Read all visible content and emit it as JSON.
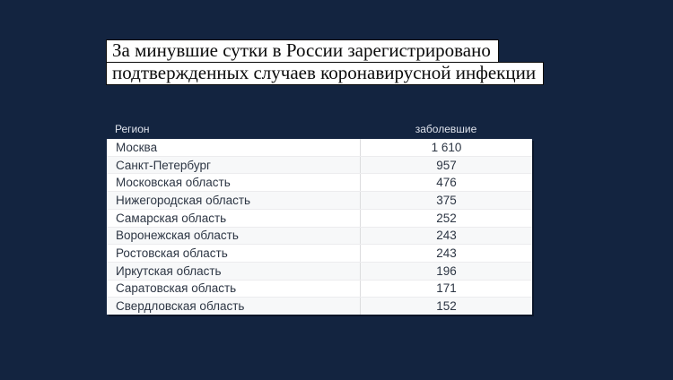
{
  "colors": {
    "background": "#132440",
    "highlight": "#ffffff",
    "title_text": "#0b0b0b",
    "table_text": "#2d3644",
    "header_text": "#dfe3ec",
    "row_alt": "#f7f8f9",
    "divider": "#dcdcde"
  },
  "title": {
    "line1": "За минувшие сутки в России зарегистрировано",
    "line2": "подтвержденных случаев коронавирусной инфекции"
  },
  "table": {
    "header": {
      "region": "Регион",
      "cases": "заболевшие"
    },
    "rows": [
      {
        "region": "Москва",
        "cases": "1 610"
      },
      {
        "region": "Санкт-Петербург",
        "cases": "957"
      },
      {
        "region": "Московская область",
        "cases": "476"
      },
      {
        "region": "Нижегородская область",
        "cases": "375"
      },
      {
        "region": "Самарская область",
        "cases": "252"
      },
      {
        "region": "Воронежская область",
        "cases": "243"
      },
      {
        "region": "Ростовская область",
        "cases": "243"
      },
      {
        "region": "Иркутская область",
        "cases": "196"
      },
      {
        "region": "Саратовская область",
        "cases": "171"
      },
      {
        "region": "Свердловская область",
        "cases": "152"
      }
    ]
  },
  "chart_data": {
    "type": "table",
    "title": "За минувшие сутки в России зарегистрировано подтвержденных случаев коронавирусной инфекции",
    "columns": [
      "Регион",
      "заболевшие"
    ],
    "categories": [
      "Москва",
      "Санкт-Петербург",
      "Московская область",
      "Нижегородская область",
      "Самарская область",
      "Воронежская область",
      "Ростовская область",
      "Иркутская область",
      "Саратовская область",
      "Свердловская область"
    ],
    "values": [
      1610,
      957,
      476,
      375,
      252,
      243,
      243,
      196,
      171,
      152
    ],
    "layout_hints": {
      "sorted": "descending",
      "value_column_alignment": "center",
      "zebra_striping": true
    }
  }
}
